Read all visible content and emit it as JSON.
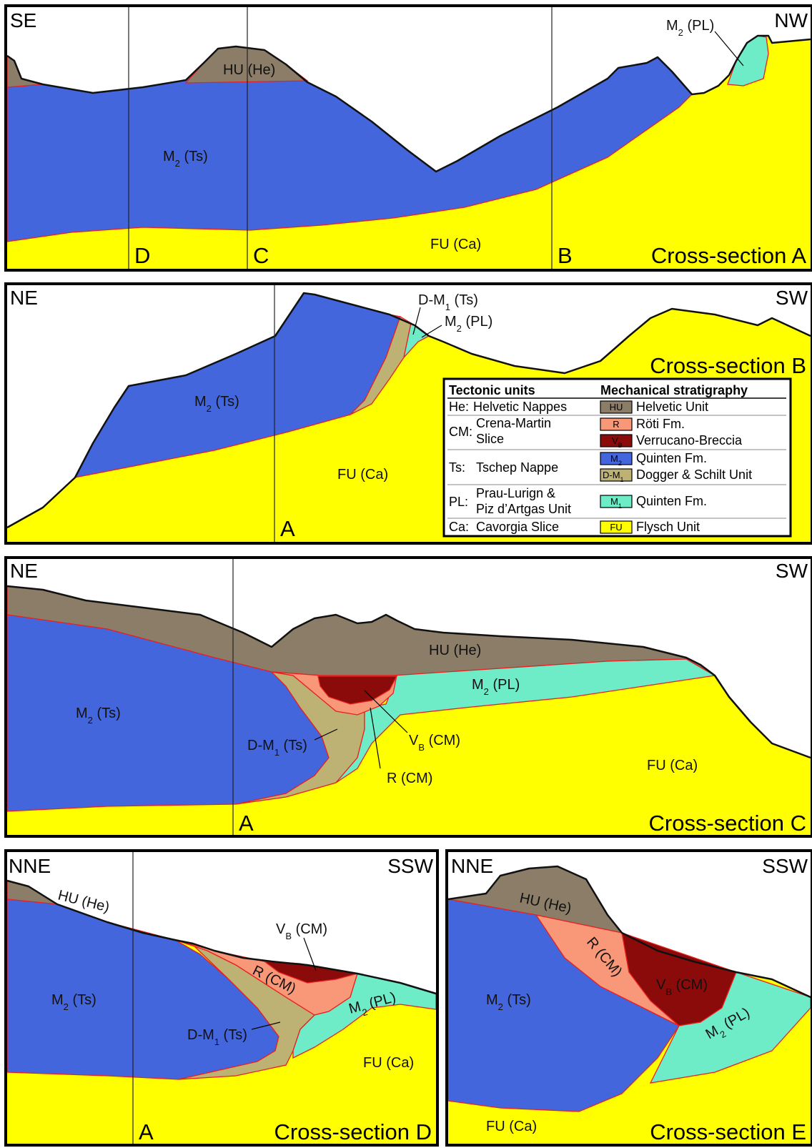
{
  "sections": [
    {
      "left": "SE",
      "right": "NW",
      "title": "Cross-section A",
      "cuts": [
        "D",
        "C",
        "B"
      ],
      "labels": [
        {
          "parts": [
            "M",
            "2",
            " (PL)"
          ]
        },
        {
          "text": "HU (He)"
        },
        {
          "parts": [
            "M",
            "2",
            " (Ts)"
          ]
        },
        {
          "text": "FU (Ca)"
        }
      ]
    },
    {
      "left": "NE",
      "right": "SW",
      "title": "Cross-section B",
      "cuts": [
        "A"
      ],
      "labels": [
        {
          "parts": [
            "D-M",
            "1",
            " (Ts)"
          ]
        },
        {
          "parts": [
            "M",
            "2",
            " (PL)"
          ]
        },
        {
          "parts": [
            "M",
            "2",
            " (Ts)"
          ]
        },
        {
          "text": "FU (Ca)"
        }
      ]
    },
    {
      "left": "NE",
      "right": "SW",
      "title": "Cross-section C",
      "cuts": [
        "A"
      ],
      "labels": [
        {
          "text": "HU (He)"
        },
        {
          "parts": [
            "M",
            "2",
            " (PL)"
          ]
        },
        {
          "parts": [
            "M",
            "2",
            " (Ts)"
          ]
        },
        {
          "parts": [
            "D-M",
            "1",
            " (Ts)"
          ]
        },
        {
          "parts": [
            "V",
            "B",
            " (CM)"
          ]
        },
        {
          "text": "R (CM)"
        },
        {
          "text": "FU (Ca)"
        }
      ]
    },
    {
      "left": "NNE",
      "right": "SSW",
      "title": "Cross-section D",
      "cuts": [
        "A"
      ],
      "labels": [
        {
          "text": "HU (He)"
        },
        {
          "parts": [
            "V",
            "B",
            " (CM)"
          ]
        },
        {
          "text": "R (CM)"
        },
        {
          "parts": [
            "M",
            "2",
            " (PL)"
          ]
        },
        {
          "parts": [
            "M",
            "2",
            " (Ts)"
          ]
        },
        {
          "parts": [
            "D-M",
            "1",
            " (Ts)"
          ]
        },
        {
          "text": "FU (Ca)"
        }
      ]
    },
    {
      "left": "NNE",
      "right": "SSW",
      "title": "Cross-section E",
      "cuts": [],
      "labels": [
        {
          "text": "HU (He)"
        },
        {
          "text": "R (CM)"
        },
        {
          "parts": [
            "V",
            "B",
            " (CM)"
          ]
        },
        {
          "parts": [
            "M",
            "2",
            " (PL)"
          ]
        },
        {
          "parts": [
            "M",
            "2",
            " (Ts)"
          ]
        },
        {
          "text": "FU (Ca)"
        }
      ]
    }
  ],
  "legend": {
    "headers": [
      "Tectonic units",
      "Mechanical stratigraphy"
    ],
    "tectonic": [
      {
        "code": "He:",
        "name": [
          "Helvetic Nappes"
        ]
      },
      {
        "code": "CM:",
        "name": [
          "Crena-Martin",
          "Slice"
        ]
      },
      {
        "code": "Ts:",
        "name": [
          "Tschep Nappe"
        ]
      },
      {
        "code": "PL:",
        "name": [
          "Prau-Lurign &",
          "Piz d’Artgas Unit"
        ]
      },
      {
        "code": "Ca:",
        "name": [
          "Cavorgia Slice"
        ]
      }
    ],
    "stratigraphy": [
      {
        "symbol": [
          "HU"
        ],
        "name": "Helvetic Unit"
      },
      {
        "symbol": [
          "R"
        ],
        "name": "Röti Fm."
      },
      {
        "symbol": [
          "V",
          "B"
        ],
        "name": "Verrucano-Breccia"
      },
      {
        "symbol": [
          "M",
          "2"
        ],
        "name": "Quinten Fm."
      },
      {
        "symbol": [
          "D-M",
          "1"
        ],
        "name": "Dogger & Schilt Unit"
      },
      {
        "symbol": [
          "M",
          "1"
        ],
        "name": "Quinten Fm."
      },
      {
        "symbol": [
          "FU"
        ],
        "name": "Flysch Unit"
      }
    ]
  }
}
